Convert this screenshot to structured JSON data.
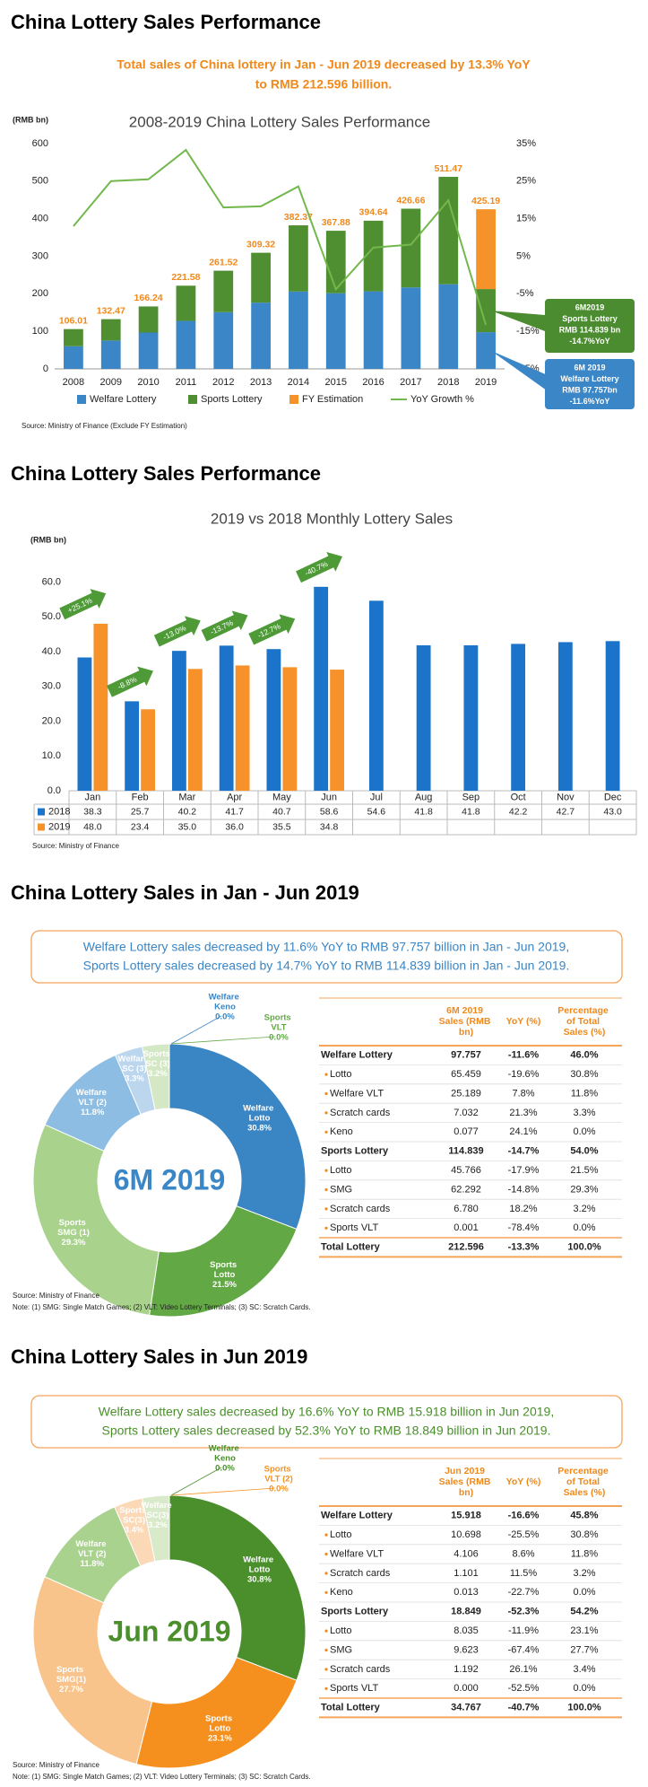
{
  "headings": [
    "China Lottery Sales Performance",
    "China Lottery Sales Performance",
    "China Lottery Sales in Jan - Jun 2019",
    "China Lottery Sales in Jun 2019"
  ],
  "summary": [
    "Total sales of China lottery in Jan - Jun 2019 decreased by 13.3% YoY",
    "to RMB 212.596 billion."
  ],
  "chart_data": [
    {
      "type": "bar",
      "title": "2008-2019 China Lottery Sales Performance",
      "y_label": "(RMB bn)",
      "categories": [
        "2008",
        "2009",
        "2010",
        "2011",
        "2012",
        "2013",
        "2014",
        "2015",
        "2016",
        "2017",
        "2018",
        "2019"
      ],
      "series": [
        {
          "name": "Welfare Lottery",
          "color": "#3a86c6",
          "values": [
            60.37,
            75.59,
            96.81,
            127.79,
            151.01,
            176.51,
            205.98,
            201.51,
            206.47,
            216.98,
            225.41,
            97.757
          ]
        },
        {
          "name": "Sports Lottery",
          "color": "#4f8f32",
          "values": [
            45.64,
            56.88,
            69.43,
            93.79,
            110.51,
            132.81,
            176.39,
            166.37,
            188.17,
            209.68,
            286.06,
            114.839
          ]
        },
        {
          "name": "FY Estimation",
          "color": "#f5922a",
          "values": [
            null,
            null,
            null,
            null,
            null,
            null,
            null,
            null,
            null,
            null,
            null,
            212.594
          ]
        },
        {
          "name": "YoY Growth %",
          "color": "#72b84c",
          "type": "line",
          "axis": "y2",
          "values": [
            13,
            25,
            25.5,
            33.3,
            18,
            18.3,
            23.6,
            -3.8,
            7.3,
            8.1,
            19.9,
            -13.3
          ]
        }
      ],
      "totals": [
        106.01,
        132.47,
        166.24,
        221.58,
        261.52,
        309.32,
        382.37,
        367.88,
        394.64,
        426.66,
        511.47,
        425.19
      ],
      "ylim": [
        0,
        600
      ],
      "yticks": [
        0,
        100,
        200,
        300,
        400,
        500,
        600
      ],
      "y2lim": [
        -25,
        35
      ],
      "y2ticks": [
        {
          "value": -25,
          "label": "-25%"
        },
        {
          "value": -15,
          "label": "-15%"
        },
        {
          "value": -5,
          "label": "-5%"
        },
        {
          "value": 5,
          "label": "5%"
        },
        {
          "value": 15,
          "label": "15%"
        },
        {
          "value": 25,
          "label": "25%"
        },
        {
          "value": 35,
          "label": "35%"
        }
      ],
      "grid": false,
      "annotations": [
        {
          "color": "#4a8c2f",
          "lines": [
            "6M2019",
            "Sports Lottery",
            "RMB 114.839 bn",
            "-14.7%YoY"
          ]
        },
        {
          "color": "#3a86c6",
          "lines": [
            "6M 2019",
            "Welfare Lottery",
            "RMB 97.757bn",
            "-11.6%YoY"
          ]
        }
      ],
      "source": "Source: Ministry of Finance (Exclude FY Estimation)"
    },
    {
      "type": "bar",
      "title": "2019 vs 2018 Monthly Lottery Sales",
      "y_label": "(RMB bn)",
      "categories": [
        "Jan",
        "Feb",
        "Mar",
        "Apr",
        "May",
        "Jun",
        "Jul",
        "Aug",
        "Sep",
        "Oct",
        "Nov",
        "Dec"
      ],
      "series": [
        {
          "name": "2018",
          "color": "#1b74c9",
          "values": [
            38.3,
            25.7,
            40.2,
            41.7,
            40.7,
            58.6,
            54.6,
            41.8,
            41.8,
            42.2,
            42.7,
            43.0
          ],
          "value_labels": [
            "38.3",
            "25.7",
            "40.2",
            "41.7",
            "40.7",
            "58.6",
            "54.6",
            "41.8",
            "41.8",
            "42.2",
            "42.7",
            "43.0"
          ]
        },
        {
          "name": "2019",
          "color": "#f7922a",
          "values": [
            48.0,
            23.4,
            35.0,
            36.0,
            35.5,
            34.8,
            null,
            null,
            null,
            null,
            null,
            null
          ],
          "value_labels": [
            "48.0",
            "23.4",
            "35.0",
            "36.0",
            "35.5",
            "34.8",
            null,
            null,
            null,
            null,
            null,
            null
          ]
        }
      ],
      "ylim": [
        0,
        65
      ],
      "yticks": [
        {
          "value": 0,
          "label": "0.0"
        },
        {
          "value": 10,
          "label": "10.0"
        },
        {
          "value": 20,
          "label": "20.0"
        },
        {
          "value": 30,
          "label": "30.0"
        },
        {
          "value": 40,
          "label": "40.0"
        },
        {
          "value": 50,
          "label": "50.0"
        },
        {
          "value": 60,
          "label": "60.0"
        }
      ],
      "grid": false,
      "annotations": [
        {
          "category": "Jan",
          "label": "+25.1%"
        },
        {
          "category": "Feb",
          "label": "-8.8%"
        },
        {
          "category": "Mar",
          "label": "-13.0%"
        },
        {
          "category": "Apr",
          "label": "-13.7%"
        },
        {
          "category": "May",
          "label": "-12.7%"
        },
        {
          "category": "Jun",
          "label": "-40.7%"
        }
      ],
      "source": "Source: Ministry of Finance"
    },
    {
      "type": "donut",
      "center_label": "6M 2019",
      "center_color": "#3a86c6",
      "categories": [
        "Welfare Lotto",
        "Sports Lotto",
        "Sports SMG (1)",
        "Welfare VLT (2)",
        "Welfare SC (3)",
        "Sports SC (3)",
        "Welfare Keno",
        "Sports VLT"
      ],
      "values": [
        30.8,
        21.5,
        29.3,
        11.8,
        3.3,
        3.2,
        0.0,
        0.0
      ],
      "value_labels": [
        "30.8%",
        "21.5%",
        "29.3%",
        "11.8%",
        "3.3%",
        "3.2%",
        "0.0%",
        "0.0%"
      ],
      "colors": [
        "#3a85c3",
        "#62a845",
        "#a9d38c",
        "#8dbde2",
        "#bcd6ee",
        "#d4e8c5",
        "#3a85c3",
        "#62a845"
      ]
    },
    {
      "type": "donut",
      "center_label": "Jun 2019",
      "center_color": "#4a8f2c",
      "categories": [
        "Welfare Lotto",
        "Sports Lotto",
        "Sports SMG(1)",
        "Welfare VLT (2)",
        "Sports SC(3)",
        "Welfare SC(3)",
        "Welfare Keno",
        "Sports VLT (2)"
      ],
      "values": [
        30.8,
        23.1,
        27.7,
        11.8,
        3.4,
        3.2,
        0.0,
        0.0
      ],
      "value_labels": [
        "30.8%",
        "23.1%",
        "27.7%",
        "11.8%",
        "3.4%",
        "3.2%",
        "0.0%",
        "0.0%"
      ],
      "colors": [
        "#4a8f2c",
        "#f5901e",
        "#f9c48b",
        "#aad28f",
        "#fbd8b6",
        "#d8eac9",
        "#4a8f2c",
        "#f5901e"
      ]
    }
  ],
  "highlights": [
    [
      "Welfare Lottery sales decreased by 11.6% YoY to RMB 97.757 billion in Jan - Jun 2019,",
      "Sports Lottery sales decreased by 14.7% YoY to RMB 114.839 billion in Jan - Jun 2019."
    ],
    [
      "Welfare Lottery sales decreased by 16.6% YoY to RMB 15.918 billion in Jun 2019,",
      "Sports Lottery sales decreased by 52.3% YoY to RMB 18.849 billion in Jun 2019."
    ]
  ],
  "tables": [
    {
      "header": [
        "6M 2019 Sales (RMB bn)",
        "YoY (%)",
        "Percentage of Total Sales (%)"
      ],
      "rows": [
        [
          "Welfare Lottery",
          "97.757",
          "-11.6%",
          "46.0%"
        ],
        [
          "Lotto",
          "65.459",
          "-19.6%",
          "30.8%"
        ],
        [
          "Welfare VLT",
          "25.189",
          "7.8%",
          "11.8%"
        ],
        [
          "Scratch cards",
          "7.032",
          "21.3%",
          "3.3%"
        ],
        [
          "Keno",
          "0.077",
          "24.1%",
          "0.0%"
        ],
        [
          "Sports Lottery",
          "114.839",
          "-14.7%",
          "54.0%"
        ],
        [
          "Lotto",
          "45.766",
          "-17.9%",
          "21.5%"
        ],
        [
          "SMG",
          "62.292",
          "-14.8%",
          "29.3%"
        ],
        [
          "Scratch cards",
          "6.780",
          "18.2%",
          "3.2%"
        ],
        [
          "Sports VLT",
          "0.001",
          "-78.4%",
          "0.0%"
        ],
        [
          "Total Lottery",
          "212.596",
          "-13.3%",
          "100.0%"
        ]
      ]
    },
    {
      "header": [
        "Jun 2019 Sales (RMB bn)",
        "YoY (%)",
        "Percentage of Total Sales (%)"
      ],
      "rows": [
        [
          "Welfare Lottery",
          "15.918",
          "-16.6%",
          "45.8%"
        ],
        [
          "Lotto",
          "10.698",
          "-25.5%",
          "30.8%"
        ],
        [
          "Welfare VLT",
          "4.106",
          "8.6%",
          "11.8%"
        ],
        [
          "Scratch cards",
          "1.101",
          "11.5%",
          "3.2%"
        ],
        [
          "Keno",
          "0.013",
          "-22.7%",
          "0.0%"
        ],
        [
          "Sports Lottery",
          "18.849",
          "-52.3%",
          "54.2%"
        ],
        [
          "Lotto",
          "8.035",
          "-11.9%",
          "23.1%"
        ],
        [
          "SMG",
          "9.623",
          "-67.4%",
          "27.7%"
        ],
        [
          "Scratch cards",
          "1.192",
          "26.1%",
          "3.4%"
        ],
        [
          "Sports VLT",
          "0.000",
          "-52.5%",
          "0.0%"
        ],
        [
          "Total Lottery",
          "34.767",
          "-40.7%",
          "100.0%"
        ]
      ]
    }
  ],
  "notes": [
    {
      "source": "Source: Ministry of Finance",
      "note": "Note: (1) SMG: Single Match Games; (2) VLT: Video Lottery Terminals; (3) SC: Scratch Cards."
    },
    {
      "source": "Source: Ministry of Finance",
      "note": "Note: (1) SMG: Single Match Games; (2) VLT: Video Lottery Terminals; (3) SC: Scratch Cards."
    }
  ]
}
